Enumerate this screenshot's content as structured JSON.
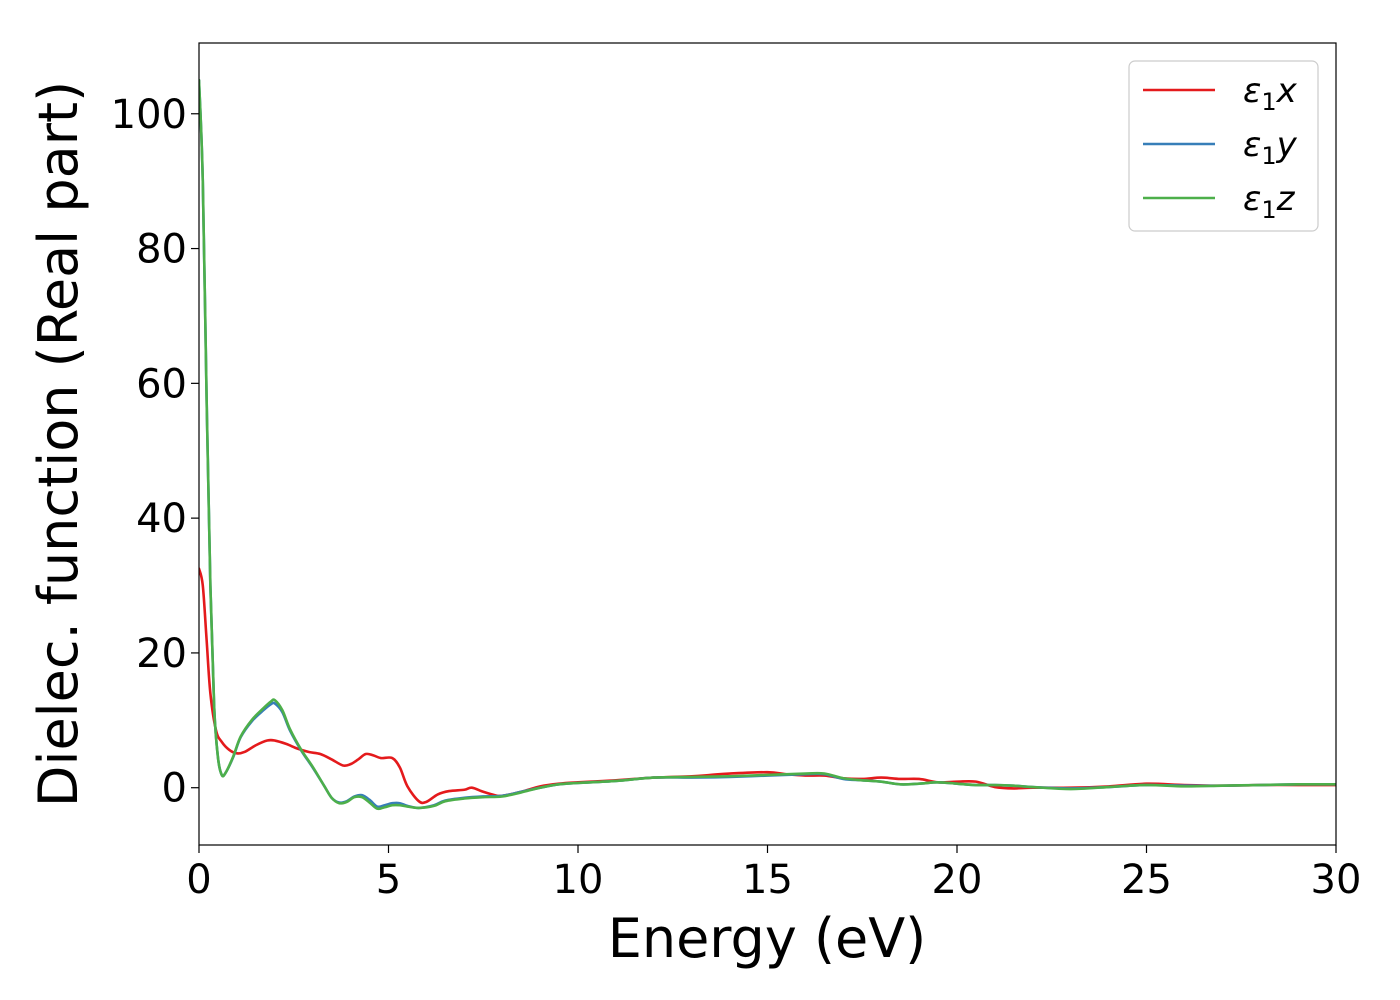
{
  "chart_data": {
    "type": "line",
    "title": "",
    "xlabel": "Energy (eV)",
    "ylabel": "Dielec. function (Real part)",
    "xlim": [
      0,
      30
    ],
    "ylim": [
      -8.5,
      110.5
    ],
    "xticks": [
      0,
      5,
      10,
      15,
      20,
      25,
      30
    ],
    "yticks": [
      0,
      20,
      40,
      60,
      80,
      100
    ],
    "grid": false,
    "legend_position": "top-right",
    "series": [
      {
        "name": "ε₁x",
        "legend_base": "ε",
        "legend_sub": "1",
        "legend_var": "x",
        "color": "#e41a1c",
        "points": [
          [
            0,
            32.5
          ],
          [
            0.1,
            30
          ],
          [
            0.2,
            22
          ],
          [
            0.3,
            14
          ],
          [
            0.45,
            8.5
          ],
          [
            0.6,
            6.8
          ],
          [
            0.8,
            5.6
          ],
          [
            1.0,
            5.1
          ],
          [
            1.2,
            5.3
          ],
          [
            1.5,
            6.3
          ],
          [
            1.8,
            7.0
          ],
          [
            2.0,
            7.0
          ],
          [
            2.3,
            6.5
          ],
          [
            2.6,
            5.8
          ],
          [
            2.9,
            5.3
          ],
          [
            3.2,
            5.0
          ],
          [
            3.5,
            4.2
          ],
          [
            3.8,
            3.3
          ],
          [
            4.0,
            3.5
          ],
          [
            4.2,
            4.2
          ],
          [
            4.4,
            5.0
          ],
          [
            4.6,
            4.8
          ],
          [
            4.8,
            4.4
          ],
          [
            5.1,
            4.4
          ],
          [
            5.3,
            3.0
          ],
          [
            5.5,
            0.2
          ],
          [
            5.8,
            -2.0
          ],
          [
            6.0,
            -2.1
          ],
          [
            6.3,
            -1.0
          ],
          [
            6.6,
            -0.5
          ],
          [
            7.0,
            -0.3
          ],
          [
            7.2,
            0.0
          ],
          [
            7.5,
            -0.6
          ],
          [
            7.8,
            -1.1
          ],
          [
            8.0,
            -1.2
          ],
          [
            8.5,
            -0.6
          ],
          [
            9.0,
            0.2
          ],
          [
            9.5,
            0.6
          ],
          [
            10,
            0.8
          ],
          [
            11,
            1.1
          ],
          [
            12,
            1.5
          ],
          [
            13,
            1.7
          ],
          [
            13.5,
            1.9
          ],
          [
            14,
            2.1
          ],
          [
            15,
            2.3
          ],
          [
            15.5,
            2.0
          ],
          [
            16,
            1.8
          ],
          [
            16.5,
            1.8
          ],
          [
            17,
            1.4
          ],
          [
            17.5,
            1.3
          ],
          [
            18,
            1.5
          ],
          [
            18.5,
            1.3
          ],
          [
            19,
            1.3
          ],
          [
            19.5,
            0.8
          ],
          [
            20,
            0.9
          ],
          [
            20.5,
            0.9
          ],
          [
            21,
            0.1
          ],
          [
            21.5,
            -0.1
          ],
          [
            22,
            0.0
          ],
          [
            23,
            0.0
          ],
          [
            24,
            0.2
          ],
          [
            25,
            0.6
          ],
          [
            26,
            0.4
          ],
          [
            27,
            0.3
          ],
          [
            28,
            0.4
          ],
          [
            29,
            0.4
          ],
          [
            30,
            0.4
          ]
        ]
      },
      {
        "name": "ε₁y",
        "legend_base": "ε",
        "legend_sub": "1",
        "legend_var": "y",
        "color": "#377eb8",
        "points": [
          [
            0,
            105
          ],
          [
            0.1,
            90
          ],
          [
            0.2,
            58
          ],
          [
            0.3,
            30
          ],
          [
            0.4,
            12
          ],
          [
            0.5,
            4.5
          ],
          [
            0.6,
            1.9
          ],
          [
            0.7,
            2.2
          ],
          [
            0.9,
            4.5
          ],
          [
            1.1,
            7.5
          ],
          [
            1.4,
            9.9
          ],
          [
            1.7,
            11.5
          ],
          [
            1.9,
            12.4
          ],
          [
            2.0,
            12.5
          ],
          [
            2.2,
            11.2
          ],
          [
            2.4,
            8.5
          ],
          [
            2.7,
            5.5
          ],
          [
            3.0,
            3.0
          ],
          [
            3.3,
            0.3
          ],
          [
            3.5,
            -1.5
          ],
          [
            3.7,
            -2.2
          ],
          [
            3.9,
            -2.0
          ],
          [
            4.1,
            -1.3
          ],
          [
            4.3,
            -1.1
          ],
          [
            4.5,
            -1.8
          ],
          [
            4.7,
            -2.8
          ],
          [
            4.9,
            -2.6
          ],
          [
            5.1,
            -2.3
          ],
          [
            5.3,
            -2.3
          ],
          [
            5.5,
            -2.7
          ],
          [
            5.8,
            -3.0
          ],
          [
            6.2,
            -2.6
          ],
          [
            6.5,
            -1.9
          ],
          [
            7.0,
            -1.5
          ],
          [
            7.5,
            -1.3
          ],
          [
            8.0,
            -1.2
          ],
          [
            8.5,
            -0.6
          ],
          [
            9.0,
            0.0
          ],
          [
            9.5,
            0.5
          ],
          [
            10,
            0.7
          ],
          [
            11,
            1.0
          ],
          [
            12,
            1.5
          ],
          [
            13,
            1.5
          ],
          [
            14,
            1.6
          ],
          [
            15,
            1.8
          ],
          [
            16,
            2.0
          ],
          [
            16.5,
            2.0
          ],
          [
            17,
            1.3
          ],
          [
            17.5,
            1.1
          ],
          [
            18,
            0.9
          ],
          [
            18.5,
            0.5
          ],
          [
            19,
            0.6
          ],
          [
            19.5,
            0.8
          ],
          [
            20,
            0.6
          ],
          [
            20.5,
            0.4
          ],
          [
            21,
            0.4
          ],
          [
            21.5,
            0.3
          ],
          [
            22,
            0.1
          ],
          [
            23,
            -0.1
          ],
          [
            24,
            0.1
          ],
          [
            25,
            0.4
          ],
          [
            26,
            0.3
          ],
          [
            27,
            0.3
          ],
          [
            28,
            0.4
          ],
          [
            29,
            0.5
          ],
          [
            30,
            0.5
          ]
        ]
      },
      {
        "name": "ε₁z",
        "legend_base": "ε",
        "legend_sub": "1",
        "legend_var": "z",
        "color": "#4daf4a",
        "points": [
          [
            0,
            105
          ],
          [
            0.1,
            90
          ],
          [
            0.2,
            58
          ],
          [
            0.3,
            30
          ],
          [
            0.4,
            12
          ],
          [
            0.5,
            4.5
          ],
          [
            0.6,
            1.9
          ],
          [
            0.7,
            2.2
          ],
          [
            0.9,
            4.6
          ],
          [
            1.1,
            7.6
          ],
          [
            1.4,
            10.1
          ],
          [
            1.7,
            11.8
          ],
          [
            1.9,
            12.8
          ],
          [
            2.0,
            13.0
          ],
          [
            2.2,
            11.5
          ],
          [
            2.4,
            8.7
          ],
          [
            2.7,
            5.6
          ],
          [
            3.0,
            3.1
          ],
          [
            3.3,
            0.3
          ],
          [
            3.5,
            -1.5
          ],
          [
            3.7,
            -2.3
          ],
          [
            3.9,
            -2.1
          ],
          [
            4.1,
            -1.4
          ],
          [
            4.3,
            -1.4
          ],
          [
            4.5,
            -2.2
          ],
          [
            4.7,
            -3.1
          ],
          [
            4.9,
            -2.9
          ],
          [
            5.1,
            -2.6
          ],
          [
            5.3,
            -2.6
          ],
          [
            5.5,
            -2.8
          ],
          [
            5.8,
            -3.0
          ],
          [
            6.2,
            -2.7
          ],
          [
            6.5,
            -2.0
          ],
          [
            7.0,
            -1.6
          ],
          [
            7.5,
            -1.4
          ],
          [
            8.0,
            -1.3
          ],
          [
            8.5,
            -0.7
          ],
          [
            9.0,
            0.0
          ],
          [
            9.5,
            0.5
          ],
          [
            10,
            0.7
          ],
          [
            11,
            1.0
          ],
          [
            12,
            1.5
          ],
          [
            13,
            1.6
          ],
          [
            14,
            1.7
          ],
          [
            15,
            1.9
          ],
          [
            16,
            2.1
          ],
          [
            16.5,
            2.1
          ],
          [
            17,
            1.4
          ],
          [
            17.5,
            1.1
          ],
          [
            18,
            0.9
          ],
          [
            18.5,
            0.5
          ],
          [
            19,
            0.6
          ],
          [
            19.5,
            0.8
          ],
          [
            20,
            0.6
          ],
          [
            20.5,
            0.4
          ],
          [
            21,
            0.4
          ],
          [
            21.5,
            0.3
          ],
          [
            22,
            0.1
          ],
          [
            23,
            -0.2
          ],
          [
            24,
            0.1
          ],
          [
            25,
            0.4
          ],
          [
            26,
            0.2
          ],
          [
            27,
            0.3
          ],
          [
            28,
            0.4
          ],
          [
            29,
            0.5
          ],
          [
            30,
            0.5
          ]
        ]
      }
    ]
  }
}
